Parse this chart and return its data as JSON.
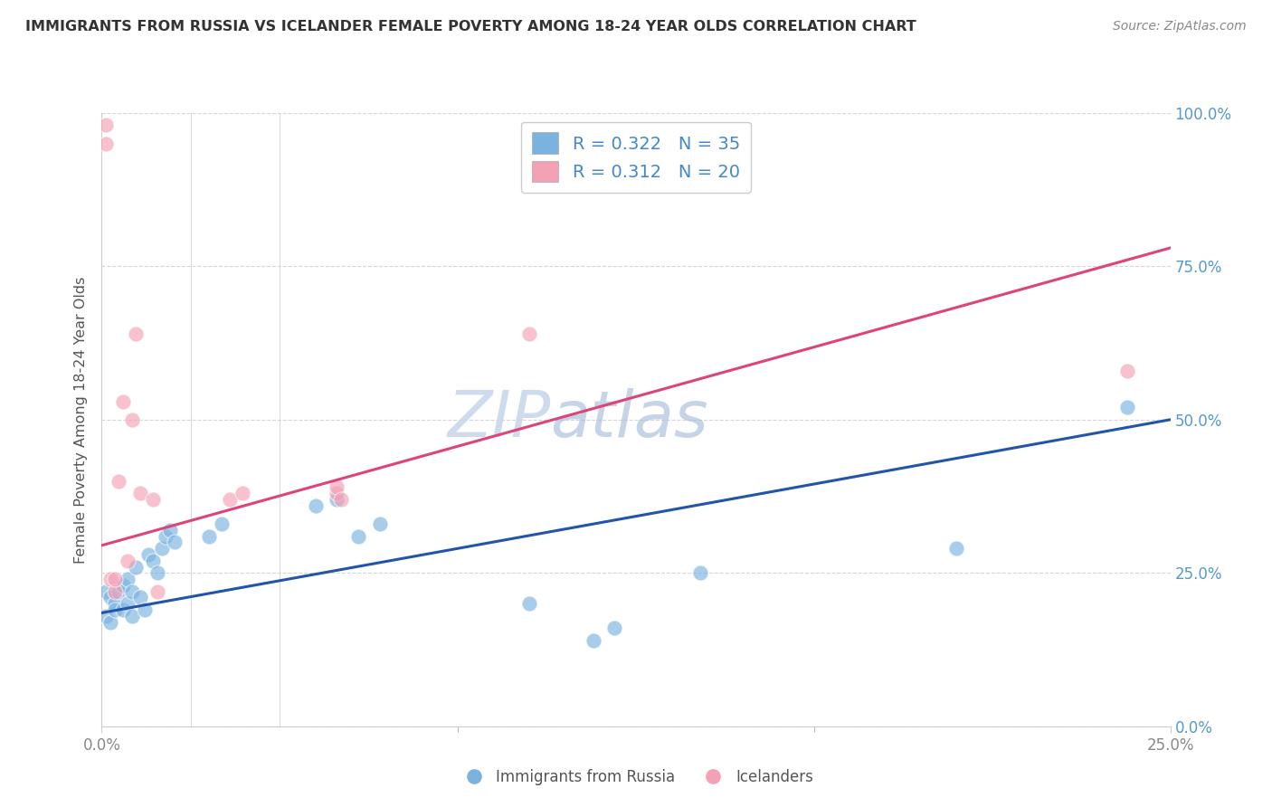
{
  "title": "IMMIGRANTS FROM RUSSIA VS ICELANDER FEMALE POVERTY AMONG 18-24 YEAR OLDS CORRELATION CHART",
  "source": "Source: ZipAtlas.com",
  "ylabel": "Female Poverty Among 18-24 Year Olds",
  "xlim": [
    0.0,
    0.25
  ],
  "ylim": [
    0.0,
    1.0
  ],
  "xtick_labels": [
    "0.0%",
    "25.0%"
  ],
  "ytick_labels": [
    "0.0%",
    "25.0%",
    "50.0%",
    "75.0%",
    "100.0%"
  ],
  "ytick_values": [
    0.0,
    0.25,
    0.5,
    0.75,
    1.0
  ],
  "xtick_values": [
    0.0,
    0.25
  ],
  "blue_color": "#7ab3e0",
  "pink_color": "#f4a0b5",
  "line_blue_color": "#2255aa",
  "line_pink_color": "#dd4477",
  "watermark_color": "#d0dff0",
  "blue_scatter_x": [
    0.001,
    0.001,
    0.002,
    0.002,
    0.003,
    0.003,
    0.004,
    0.005,
    0.005,
    0.006,
    0.006,
    0.007,
    0.007,
    0.008,
    0.009,
    0.01,
    0.011,
    0.012,
    0.013,
    0.014,
    0.015,
    0.016,
    0.017,
    0.025,
    0.028,
    0.05,
    0.055,
    0.06,
    0.065,
    0.1,
    0.115,
    0.12,
    0.14,
    0.2,
    0.24
  ],
  "blue_scatter_y": [
    0.22,
    0.18,
    0.21,
    0.17,
    0.2,
    0.19,
    0.22,
    0.23,
    0.19,
    0.24,
    0.2,
    0.22,
    0.18,
    0.26,
    0.21,
    0.19,
    0.28,
    0.27,
    0.25,
    0.29,
    0.31,
    0.32,
    0.3,
    0.31,
    0.33,
    0.36,
    0.37,
    0.31,
    0.33,
    0.2,
    0.14,
    0.16,
    0.25,
    0.29,
    0.52
  ],
  "pink_scatter_x": [
    0.001,
    0.001,
    0.002,
    0.003,
    0.003,
    0.004,
    0.005,
    0.006,
    0.007,
    0.008,
    0.009,
    0.012,
    0.013,
    0.03,
    0.033,
    0.055,
    0.055,
    0.056,
    0.1,
    0.24
  ],
  "pink_scatter_y": [
    0.95,
    0.98,
    0.24,
    0.22,
    0.24,
    0.4,
    0.53,
    0.27,
    0.5,
    0.64,
    0.38,
    0.37,
    0.22,
    0.37,
    0.38,
    0.38,
    0.39,
    0.37,
    0.64,
    0.58
  ],
  "blue_line_x": [
    0.0,
    0.25
  ],
  "blue_line_y": [
    0.185,
    0.5
  ],
  "pink_line_x": [
    0.0,
    0.25
  ],
  "pink_line_y": [
    0.295,
    0.78
  ],
  "bg_color": "#ffffff",
  "grid_color": "#cccccc",
  "ytick_color": "#5599cc",
  "xtick_color": "#888888"
}
